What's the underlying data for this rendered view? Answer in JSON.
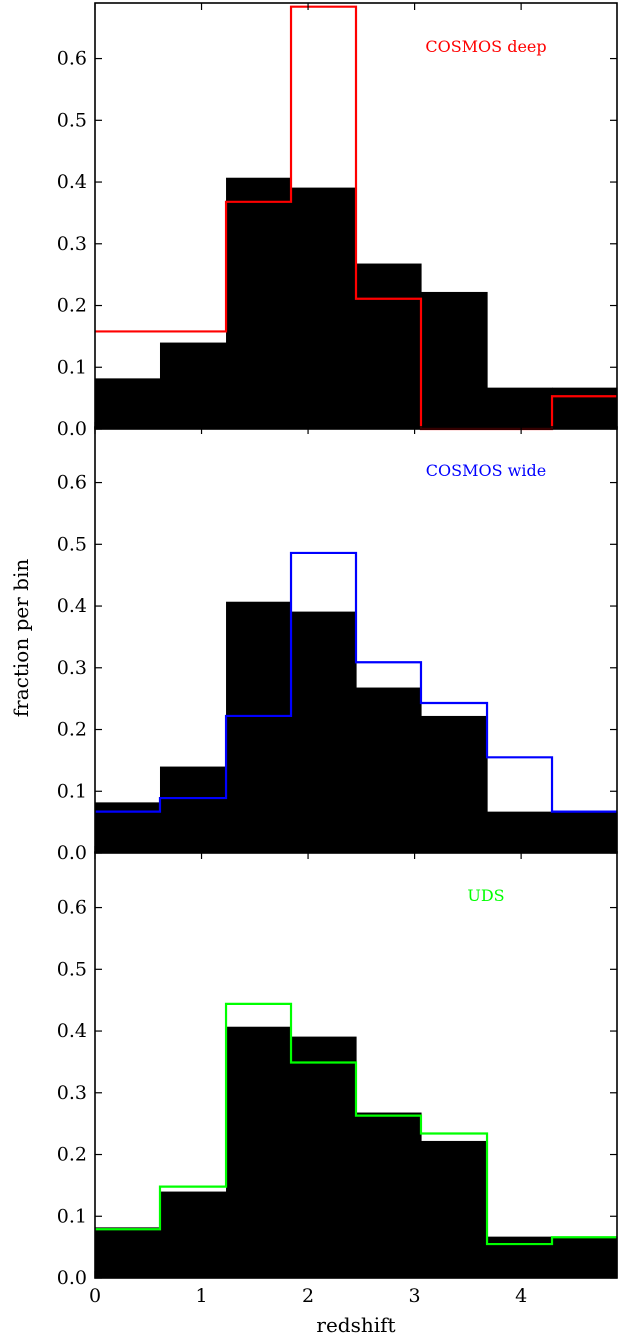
{
  "ylabel": "fraction per bin",
  "xlabel": "redshift",
  "chart_data": [
    {
      "type": "bar",
      "label": "COSMOS deep",
      "label_color": "#ff0000",
      "bin_edges": [
        0,
        0.61,
        1.23,
        1.84,
        2.45,
        3.06,
        3.68,
        4.29,
        4.9
      ],
      "reference_values": [
        0.082,
        0.14,
        0.407,
        0.391,
        0.268,
        0.222,
        0.067,
        0.067
      ],
      "series_values": [
        0.158,
        0.158,
        0.368,
        0.684,
        0.211,
        0.0,
        0.0,
        0.053
      ],
      "xlim": [
        0,
        4.9
      ],
      "ylim": [
        0,
        0.69
      ],
      "yticks": [
        "0.0",
        "0.1",
        "0.2",
        "0.3",
        "0.4",
        "0.5",
        "0.6"
      ],
      "xticks": [
        0,
        1,
        2,
        3,
        4
      ],
      "show_xtick_labels": false
    },
    {
      "type": "bar",
      "label": "COSMOS wide",
      "label_color": "#0000ff",
      "bin_edges": [
        0,
        0.61,
        1.23,
        1.84,
        2.45,
        3.06,
        3.68,
        4.29,
        4.9
      ],
      "reference_values": [
        0.082,
        0.14,
        0.407,
        0.391,
        0.268,
        0.222,
        0.067,
        0.067
      ],
      "series_values": [
        0.067,
        0.089,
        0.222,
        0.486,
        0.309,
        0.243,
        0.155,
        0.067
      ],
      "xlim": [
        0,
        4.9
      ],
      "ylim": [
        0,
        0.69
      ],
      "yticks": [
        "0.0",
        "0.1",
        "0.2",
        "0.3",
        "0.4",
        "0.5",
        "0.6"
      ],
      "xticks": [
        0,
        1,
        2,
        3,
        4
      ],
      "show_xtick_labels": false
    },
    {
      "type": "bar",
      "label": "UDS",
      "label_color": "#00ff00",
      "bin_edges": [
        0,
        0.61,
        1.23,
        1.84,
        2.45,
        3.06,
        3.68,
        4.29,
        4.9
      ],
      "reference_values": [
        0.082,
        0.14,
        0.407,
        0.391,
        0.268,
        0.222,
        0.067,
        0.067
      ],
      "series_values": [
        0.079,
        0.148,
        0.444,
        0.349,
        0.263,
        0.234,
        0.055,
        0.066
      ],
      "xlim": [
        0,
        4.9
      ],
      "ylim": [
        0,
        0.69
      ],
      "yticks": [
        "0.0",
        "0.1",
        "0.2",
        "0.3",
        "0.4",
        "0.5",
        "0.6"
      ],
      "xticks": [
        "0",
        "1",
        "2",
        "3",
        "4"
      ],
      "show_xtick_labels": true
    }
  ]
}
